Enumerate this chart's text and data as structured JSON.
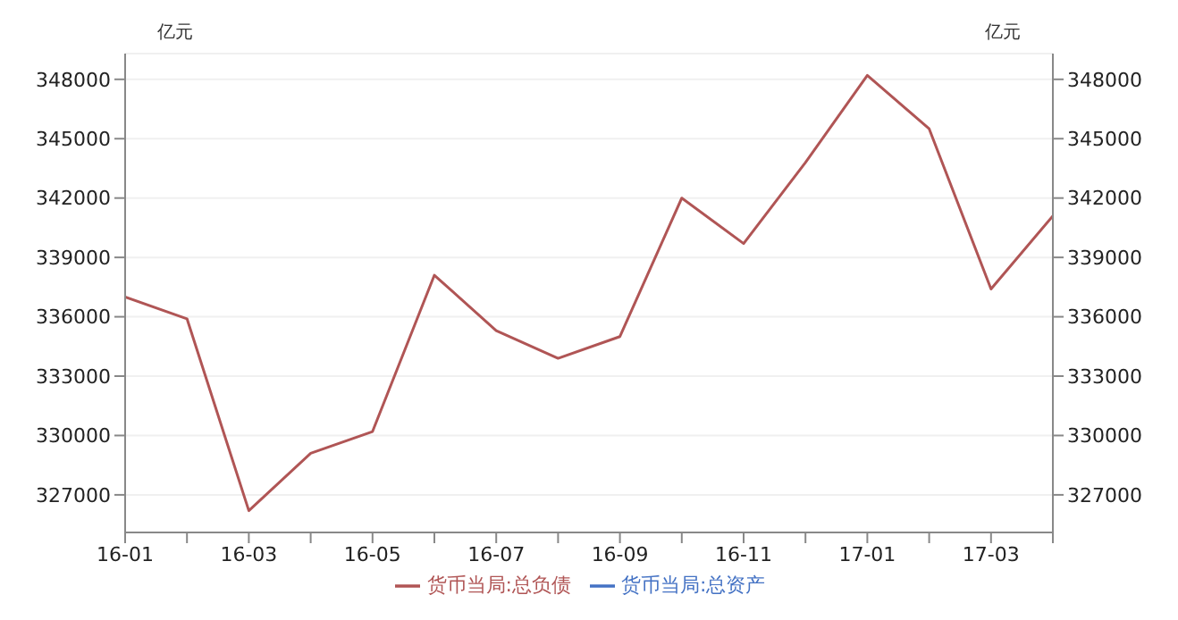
{
  "chart_data": {
    "type": "line",
    "ylabel": "亿元",
    "y2label": "亿元",
    "categories": [
      "16-01",
      null,
      "16-03",
      null,
      "16-05",
      null,
      "16-07",
      null,
      "16-09",
      null,
      "16-11",
      null,
      "17-01",
      null,
      "17-03",
      null
    ],
    "series": [
      {
        "name": "货币当局:总资产",
        "color": "#4472c4",
        "values": [
          null,
          null,
          null,
          null,
          null,
          null,
          null,
          null,
          null,
          null,
          null,
          null,
          null,
          null,
          null,
          null
        ]
      },
      {
        "name": "货币当局:总负债",
        "color": "#b05555",
        "values": [
          337000,
          335900,
          326200,
          329100,
          330200,
          338100,
          335300,
          333900,
          335000,
          342000,
          339700,
          343800,
          348200,
          345500,
          337400,
          341100
        ]
      }
    ],
    "ylim": [
      325100,
      349300
    ],
    "yticks": [
      327000,
      330000,
      333000,
      336000,
      339000,
      342000,
      345000,
      348000
    ],
    "y2lim": [
      325100,
      349300
    ],
    "y2ticks": [
      327000,
      330000,
      333000,
      336000,
      339000,
      342000,
      345000,
      348000
    ],
    "grid": "y",
    "legend": "bottom",
    "marker": "none",
    "line_style": "solid"
  }
}
